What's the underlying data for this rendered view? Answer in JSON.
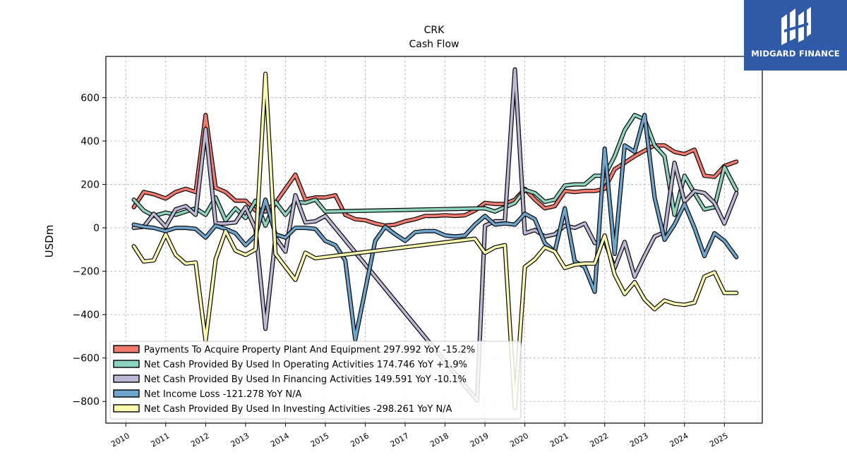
{
  "chart_data": {
    "type": "line",
    "title": "CRK",
    "subtitle": "Cash Flow",
    "ylabel": "USDm",
    "xlabel": "",
    "xlim": [
      2009.5,
      2025.95
    ],
    "ylim": [
      -900,
      790
    ],
    "yticks": [
      -800,
      -600,
      -400,
      -200,
      0,
      200,
      400,
      600
    ],
    "ytick_labels": [
      "−800",
      "−600",
      "−400",
      "−200",
      "0",
      "200",
      "400",
      "600"
    ],
    "xticks": [
      2010,
      2011,
      2012,
      2013,
      2014,
      2015,
      2016,
      2017,
      2018,
      2019,
      2020,
      2021,
      2022,
      2023,
      2024,
      2025
    ],
    "xtick_labels": [
      "2010",
      "2011",
      "2012",
      "2013",
      "2014",
      "2015",
      "2016",
      "2017",
      "2018",
      "2019",
      "2020",
      "2021",
      "2022",
      "2023",
      "2024",
      "2025"
    ],
    "grid": true,
    "legend_position": "lower-left",
    "series": [
      {
        "name": "Payments To Acquire Property Plant And Equipment  297.992 YoY -15.2%",
        "color": "#f07a6e",
        "points": [
          [
            2010.2,
            95
          ],
          [
            2010.45,
            165
          ],
          [
            2010.7,
            155
          ],
          [
            2011.0,
            135
          ],
          [
            2011.25,
            165
          ],
          [
            2011.5,
            180
          ],
          [
            2011.75,
            165
          ],
          [
            2012.0,
            520
          ],
          [
            2012.25,
            185
          ],
          [
            2012.5,
            165
          ],
          [
            2012.75,
            125
          ],
          [
            2013.0,
            125
          ],
          [
            2013.25,
            80
          ],
          [
            2013.5,
            75
          ],
          [
            2013.75,
            115
          ],
          [
            2014.0,
            180
          ],
          [
            2014.25,
            245
          ],
          [
            2014.5,
            130
          ],
          [
            2014.75,
            140
          ],
          [
            2015.0,
            140
          ],
          [
            2015.25,
            150
          ],
          [
            2015.5,
            60
          ],
          [
            2015.75,
            40
          ],
          [
            2016.0,
            35
          ],
          [
            2016.25,
            20
          ],
          [
            2016.5,
            10
          ],
          [
            2016.75,
            15
          ],
          [
            2017.0,
            30
          ],
          [
            2017.25,
            40
          ],
          [
            2017.5,
            55
          ],
          [
            2017.75,
            55
          ],
          [
            2018.0,
            58
          ],
          [
            2018.25,
            55
          ],
          [
            2018.5,
            58
          ],
          [
            2018.75,
            80
          ],
          [
            2019.0,
            115
          ],
          [
            2019.25,
            110
          ],
          [
            2019.5,
            110
          ],
          [
            2019.75,
            130
          ],
          [
            2020.0,
            180
          ],
          [
            2020.25,
            130
          ],
          [
            2020.5,
            90
          ],
          [
            2020.75,
            100
          ],
          [
            2021.0,
            170
          ],
          [
            2021.25,
            165
          ],
          [
            2021.5,
            170
          ],
          [
            2021.75,
            170
          ],
          [
            2022.0,
            180
          ],
          [
            2022.25,
            270
          ],
          [
            2022.5,
            300
          ],
          [
            2022.75,
            330
          ],
          [
            2023.0,
            355
          ],
          [
            2023.25,
            380
          ],
          [
            2023.5,
            380
          ],
          [
            2023.75,
            350
          ],
          [
            2024.0,
            340
          ],
          [
            2024.25,
            360
          ],
          [
            2024.5,
            240
          ],
          [
            2024.75,
            235
          ],
          [
            2025.0,
            285
          ],
          [
            2025.3,
            305
          ]
        ]
      },
      {
        "name": "Net Cash Provided By Used In Operating Activities  174.746 YoY +1.9%",
        "color": "#8dd3c0",
        "points": [
          [
            2010.2,
            130
          ],
          [
            2010.45,
            80
          ],
          [
            2010.7,
            55
          ],
          [
            2011.0,
            70
          ],
          [
            2011.25,
            60
          ],
          [
            2011.5,
            75
          ],
          [
            2011.75,
            90
          ],
          [
            2012.0,
            60
          ],
          [
            2012.25,
            140
          ],
          [
            2012.5,
            35
          ],
          [
            2012.75,
            90
          ],
          [
            2013.0,
            45
          ],
          [
            2013.25,
            125
          ],
          [
            2013.5,
            10
          ],
          [
            2013.75,
            120
          ],
          [
            2014.0,
            60
          ],
          [
            2014.25,
            120
          ],
          [
            2014.5,
            115
          ],
          [
            2014.75,
            130
          ],
          [
            2015.0,
            75
          ],
          [
            2019.0,
            90
          ],
          [
            2019.25,
            75
          ],
          [
            2019.5,
            95
          ],
          [
            2019.75,
            115
          ],
          [
            2020.0,
            175
          ],
          [
            2020.25,
            160
          ],
          [
            2020.5,
            120
          ],
          [
            2020.75,
            130
          ],
          [
            2021.0,
            195
          ],
          [
            2021.25,
            200
          ],
          [
            2021.5,
            200
          ],
          [
            2021.75,
            240
          ],
          [
            2022.0,
            240
          ],
          [
            2022.25,
            330
          ],
          [
            2022.5,
            450
          ],
          [
            2022.75,
            520
          ],
          [
            2023.0,
            500
          ],
          [
            2023.25,
            380
          ],
          [
            2023.5,
            330
          ],
          [
            2023.75,
            60
          ],
          [
            2024.0,
            240
          ],
          [
            2024.25,
            160
          ],
          [
            2024.5,
            85
          ],
          [
            2024.75,
            95
          ],
          [
            2025.0,
            280
          ],
          [
            2025.3,
            175
          ]
        ]
      },
      {
        "name": "Net Cash Provided By Used In Financing Activities  149.591 YoY -10.1%",
        "color": "#bcb8d6",
        "points": [
          [
            2010.2,
            0
          ],
          [
            2010.45,
            5
          ],
          [
            2010.7,
            65
          ],
          [
            2011.0,
            5
          ],
          [
            2011.25,
            85
          ],
          [
            2011.5,
            100
          ],
          [
            2011.75,
            60
          ],
          [
            2012.0,
            455
          ],
          [
            2012.25,
            20
          ],
          [
            2012.5,
            20
          ],
          [
            2012.75,
            25
          ],
          [
            2013.0,
            95
          ],
          [
            2013.25,
            -5
          ],
          [
            2013.5,
            -465
          ],
          [
            2013.75,
            -45
          ],
          [
            2014.0,
            -110
          ],
          [
            2014.25,
            150
          ],
          [
            2014.5,
            25
          ],
          [
            2014.75,
            30
          ],
          [
            2015.0,
            55
          ],
          [
            2018.8,
            -795
          ],
          [
            2019.0,
            10
          ],
          [
            2019.25,
            30
          ],
          [
            2019.5,
            30
          ],
          [
            2019.75,
            730
          ],
          [
            2020.0,
            -25
          ],
          [
            2020.25,
            -10
          ],
          [
            2020.5,
            -40
          ],
          [
            2020.75,
            -30
          ],
          [
            2021.0,
            10
          ],
          [
            2021.25,
            0
          ],
          [
            2021.5,
            20
          ],
          [
            2021.75,
            -70
          ],
          [
            2022.0,
            -60
          ],
          [
            2022.25,
            -185
          ],
          [
            2022.5,
            -65
          ],
          [
            2022.75,
            -225
          ],
          [
            2023.0,
            -130
          ],
          [
            2023.25,
            -40
          ],
          [
            2023.5,
            -20
          ],
          [
            2023.75,
            300
          ],
          [
            2024.0,
            120
          ],
          [
            2024.25,
            170
          ],
          [
            2024.5,
            160
          ],
          [
            2024.75,
            115
          ],
          [
            2025.0,
            20
          ],
          [
            2025.3,
            160
          ]
        ]
      },
      {
        "name": "Net Income Loss  -121.278 YoY N/A",
        "color": "#6ea5cc",
        "points": [
          [
            2010.2,
            15
          ],
          [
            2010.45,
            5
          ],
          [
            2010.7,
            0
          ],
          [
            2011.0,
            -15
          ],
          [
            2011.25,
            0
          ],
          [
            2011.5,
            0
          ],
          [
            2011.75,
            -5
          ],
          [
            2012.0,
            -45
          ],
          [
            2012.25,
            10
          ],
          [
            2012.5,
            -5
          ],
          [
            2012.75,
            -25
          ],
          [
            2013.0,
            -80
          ],
          [
            2013.25,
            -35
          ],
          [
            2013.5,
            130
          ],
          [
            2013.75,
            -30
          ],
          [
            2014.0,
            -45
          ],
          [
            2014.25,
            0
          ],
          [
            2014.5,
            0
          ],
          [
            2014.75,
            -5
          ],
          [
            2015.0,
            -60
          ],
          [
            2015.25,
            -80
          ],
          [
            2015.5,
            -150
          ],
          [
            2015.75,
            -515
          ],
          [
            2016.0,
            -285
          ],
          [
            2016.25,
            -60
          ],
          [
            2016.5,
            5
          ],
          [
            2016.75,
            -30
          ],
          [
            2017.0,
            -60
          ],
          [
            2017.25,
            -20
          ],
          [
            2017.5,
            -15
          ],
          [
            2017.75,
            -15
          ],
          [
            2018.0,
            -35
          ],
          [
            2018.25,
            -40
          ],
          [
            2018.5,
            -35
          ],
          [
            2018.75,
            15
          ],
          [
            2019.0,
            55
          ],
          [
            2019.25,
            15
          ],
          [
            2019.5,
            20
          ],
          [
            2019.75,
            15
          ],
          [
            2020.0,
            65
          ],
          [
            2020.25,
            40
          ],
          [
            2020.5,
            -70
          ],
          [
            2020.75,
            -110
          ],
          [
            2021.0,
            90
          ],
          [
            2021.25,
            -155
          ],
          [
            2021.5,
            -180
          ],
          [
            2021.75,
            -295
          ],
          [
            2022.0,
            365
          ],
          [
            2022.25,
            -120
          ],
          [
            2022.5,
            380
          ],
          [
            2022.75,
            350
          ],
          [
            2023.0,
            520
          ],
          [
            2023.25,
            140
          ],
          [
            2023.5,
            -55
          ],
          [
            2023.75,
            15
          ],
          [
            2024.0,
            110
          ],
          [
            2024.25,
            0
          ],
          [
            2024.5,
            -130
          ],
          [
            2024.75,
            -25
          ],
          [
            2025.0,
            -60
          ],
          [
            2025.3,
            -135
          ]
        ]
      },
      {
        "name": "Net Cash Provided By Used In Investing Activities  -298.261 YoY N/A",
        "color": "#fcfcb0",
        "points": [
          [
            2010.2,
            -85
          ],
          [
            2010.45,
            -155
          ],
          [
            2010.7,
            -150
          ],
          [
            2011.0,
            -30
          ],
          [
            2011.25,
            -125
          ],
          [
            2011.5,
            -165
          ],
          [
            2011.75,
            -160
          ],
          [
            2012.0,
            -520
          ],
          [
            2012.25,
            -145
          ],
          [
            2012.5,
            -15
          ],
          [
            2012.75,
            -105
          ],
          [
            2013.0,
            -125
          ],
          [
            2013.25,
            -100
          ],
          [
            2013.5,
            710
          ],
          [
            2013.75,
            -120
          ],
          [
            2014.0,
            -180
          ],
          [
            2014.25,
            -240
          ],
          [
            2014.5,
            -115
          ],
          [
            2014.75,
            -140
          ],
          [
            2018.75,
            -50
          ],
          [
            2019.0,
            -115
          ],
          [
            2019.25,
            -90
          ],
          [
            2019.5,
            -80
          ],
          [
            2019.75,
            -830
          ],
          [
            2020.0,
            -180
          ],
          [
            2020.25,
            -145
          ],
          [
            2020.5,
            -90
          ],
          [
            2020.75,
            -110
          ],
          [
            2021.0,
            -185
          ],
          [
            2021.25,
            -170
          ],
          [
            2021.5,
            -165
          ],
          [
            2021.75,
            -165
          ],
          [
            2022.0,
            -35
          ],
          [
            2022.25,
            -215
          ],
          [
            2022.5,
            -305
          ],
          [
            2022.75,
            -250
          ],
          [
            2023.0,
            -330
          ],
          [
            2023.25,
            -375
          ],
          [
            2023.5,
            -335
          ],
          [
            2023.75,
            -350
          ],
          [
            2024.0,
            -355
          ],
          [
            2024.25,
            -345
          ],
          [
            2024.5,
            -225
          ],
          [
            2024.75,
            -205
          ],
          [
            2025.0,
            -300
          ],
          [
            2025.3,
            -300
          ]
        ]
      }
    ]
  },
  "brand": {
    "name": "MIDGARD FINANCE",
    "background": "#2f5aa8",
    "text_color": "#ffffff"
  }
}
